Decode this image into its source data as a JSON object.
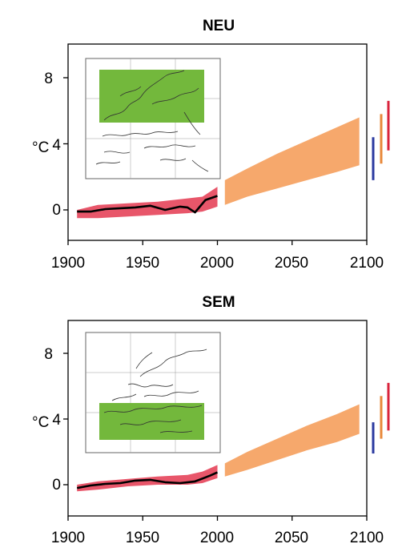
{
  "colors": {
    "observed": "#000000",
    "model_20c": "#e8566a",
    "projection": "#f6a86c",
    "region_box": "#73b83c",
    "bar_blue": "#2b3aa0",
    "bar_orange": "#e8883a",
    "bar_red": "#d9233b"
  },
  "chart_data": [
    {
      "type": "area",
      "title": "NEU",
      "ylabel": "°C",
      "xlim": [
        1900,
        2100
      ],
      "ylim": [
        -1.6,
        10.5
      ],
      "xticks": [
        "1900",
        "1950",
        "2000",
        "2050",
        "2100"
      ],
      "yticks": [
        "0",
        "4",
        "8"
      ],
      "inset_region": "northern-europe",
      "series": [
        {
          "kind": "observed-line",
          "x": [
            1906,
            1915,
            1925,
            1935,
            1945,
            1955,
            1965,
            1975,
            1980,
            1985,
            1992,
            2000
          ],
          "y": [
            -0.1,
            -0.1,
            0.05,
            0.1,
            0.15,
            0.25,
            0.0,
            0.2,
            0.15,
            -0.15,
            0.6,
            0.85
          ]
        },
        {
          "kind": "model-envelope-20c",
          "x": [
            1906,
            1920,
            1940,
            1960,
            1980,
            1990,
            2000
          ],
          "upper": [
            0.0,
            0.3,
            0.4,
            0.5,
            0.7,
            0.8,
            1.4
          ],
          "lower": [
            -0.5,
            -0.5,
            -0.4,
            -0.3,
            -0.2,
            -0.1,
            0.2
          ]
        },
        {
          "kind": "projection-envelope-21c",
          "x": [
            2005,
            2020,
            2040,
            2060,
            2080,
            2095
          ],
          "upper": [
            1.8,
            2.5,
            3.4,
            4.2,
            5.0,
            5.6
          ],
          "lower": [
            0.3,
            0.8,
            1.3,
            1.8,
            2.3,
            2.7
          ]
        }
      ],
      "bars": [
        {
          "color": "blue",
          "low": 1.8,
          "high": 4.4
        },
        {
          "color": "orange",
          "low": 2.8,
          "high": 5.8
        },
        {
          "color": "red",
          "low": 3.6,
          "high": 6.6
        }
      ]
    },
    {
      "type": "area",
      "title": "SEM",
      "ylabel": "°C",
      "xlim": [
        1900,
        2100
      ],
      "ylim": [
        -1.6,
        10.5
      ],
      "xticks": [
        "1900",
        "1950",
        "2000",
        "2050",
        "2100"
      ],
      "yticks": [
        "0",
        "4",
        "8"
      ],
      "inset_region": "southern-europe-mediterranean",
      "series": [
        {
          "kind": "observed-line",
          "x": [
            1906,
            1915,
            1925,
            1935,
            1945,
            1955,
            1965,
            1975,
            1985,
            1995,
            2000
          ],
          "y": [
            -0.2,
            -0.05,
            0.05,
            0.1,
            0.25,
            0.3,
            0.15,
            0.1,
            0.2,
            0.55,
            0.75
          ]
        },
        {
          "kind": "model-envelope-20c",
          "x": [
            1906,
            1920,
            1940,
            1960,
            1980,
            1990,
            2000
          ],
          "upper": [
            0.0,
            0.2,
            0.35,
            0.5,
            0.6,
            0.8,
            1.2
          ],
          "lower": [
            -0.4,
            -0.3,
            -0.1,
            0.0,
            0.0,
            0.1,
            0.4
          ]
        },
        {
          "kind": "projection-envelope-21c",
          "x": [
            2005,
            2020,
            2040,
            2060,
            2080,
            2095
          ],
          "upper": [
            1.3,
            2.0,
            2.8,
            3.6,
            4.3,
            4.9
          ],
          "lower": [
            0.5,
            0.9,
            1.5,
            2.1,
            2.6,
            3.1
          ]
        }
      ],
      "bars": [
        {
          "color": "blue",
          "low": 1.9,
          "high": 3.8
        },
        {
          "color": "orange",
          "low": 2.8,
          "high": 5.4
        },
        {
          "color": "red",
          "low": 3.3,
          "high": 6.2
        }
      ]
    }
  ]
}
